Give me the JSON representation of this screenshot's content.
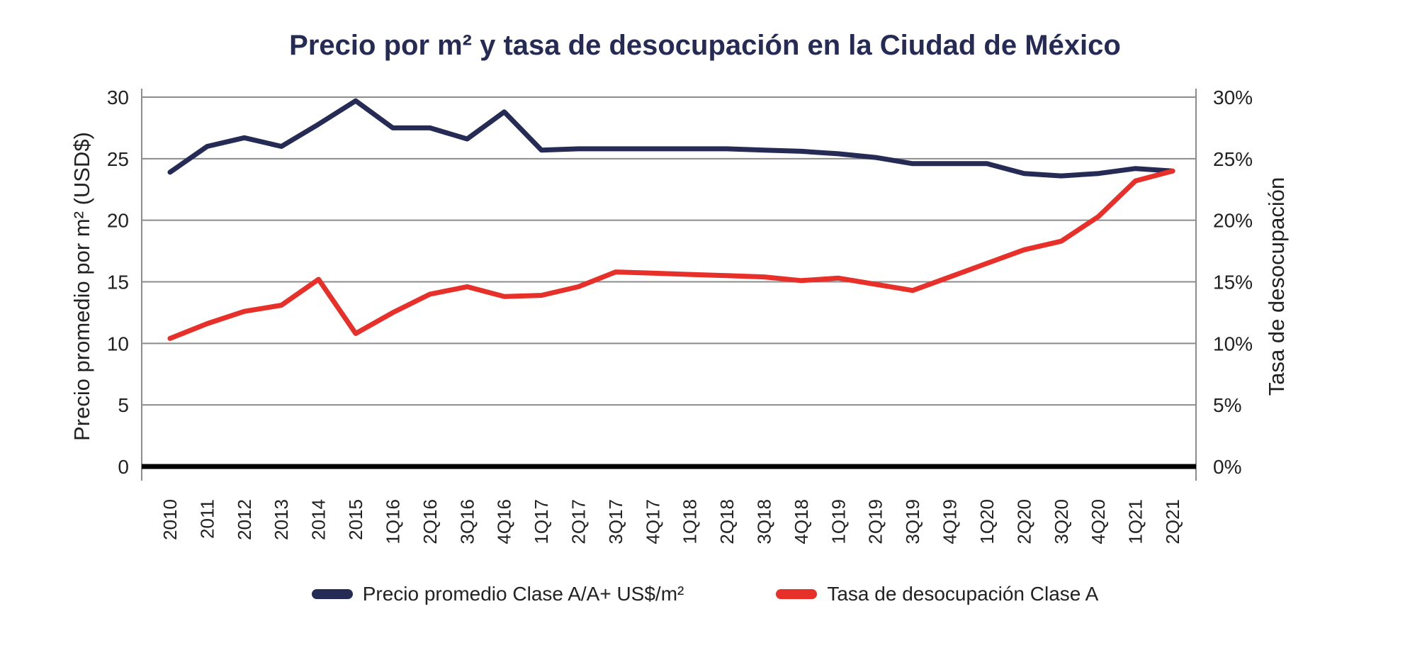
{
  "chart_data": {
    "type": "line",
    "title": "Precio por m² y tasa de desocupación en la Ciudad de México",
    "categories": [
      "2010",
      "2011",
      "2012",
      "2013",
      "2014",
      "2015",
      "1Q16",
      "2Q16",
      "3Q16",
      "4Q16",
      "1Q17",
      "2Q17",
      "3Q17",
      "4Q17",
      "1Q18",
      "2Q18",
      "3Q18",
      "4Q18",
      "1Q19",
      "2Q19",
      "3Q19",
      "4Q19",
      "1Q20",
      "2Q20",
      "3Q20",
      "4Q20",
      "1Q21",
      "2Q21"
    ],
    "y_left": {
      "label": "Precio promedio por m² (USD$)",
      "ylim": [
        0,
        30
      ],
      "ticks": [
        "0",
        "5",
        "10",
        "15",
        "20",
        "25",
        "30"
      ]
    },
    "y_right": {
      "label": "Tasa de desocupación",
      "ylim": [
        0,
        30
      ],
      "ticks": [
        "0%",
        "5%",
        "10%",
        "15%",
        "20%",
        "25%",
        "30%"
      ]
    },
    "series": [
      {
        "name": "Precio promedio Clase A/A+ US$/m²",
        "axis": "left",
        "color": "#262b55",
        "values": [
          23.9,
          26.0,
          26.7,
          26.0,
          27.8,
          29.7,
          27.5,
          27.5,
          26.6,
          28.8,
          25.7,
          25.8,
          25.8,
          25.8,
          25.8,
          25.8,
          25.7,
          25.6,
          25.4,
          25.1,
          24.6,
          24.6,
          24.6,
          23.8,
          23.6,
          23.8,
          24.2,
          24.0
        ]
      },
      {
        "name": "Tasa de desocupación Clase A",
        "axis": "right",
        "color": "#e8302a",
        "values": [
          10.4,
          11.6,
          12.6,
          13.1,
          15.2,
          10.8,
          12.5,
          14.0,
          14.6,
          13.8,
          13.9,
          14.6,
          15.8,
          15.7,
          15.6,
          15.5,
          15.4,
          15.1,
          15.3,
          14.8,
          14.3,
          15.4,
          16.5,
          17.6,
          18.3,
          20.3,
          23.2,
          24.0
        ]
      }
    ]
  }
}
